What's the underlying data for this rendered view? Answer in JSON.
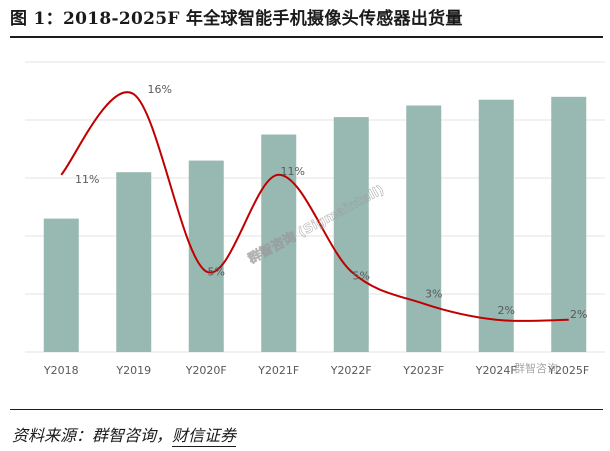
{
  "figure": {
    "title": "图 1：2018-2025F 年全球智能手机摄像头传感器出货量",
    "source_prefix": "资料来源：群智咨询，",
    "source_highlight": "财信证券",
    "watermark_center": "群智咨询 (Sigmaintell)",
    "watermark_corner": "群智咨询"
  },
  "colors": {
    "bar": "#98b9b2",
    "line": "#c00000",
    "grid": "#e3e3e3",
    "text": "#595959"
  },
  "chart_data": {
    "type": "bar",
    "title": "",
    "xlabel": "",
    "ylabel": "",
    "categories": [
      "Y2018",
      "Y2019",
      "Y2020F",
      "Y2021F",
      "Y2022F",
      "Y2023F",
      "Y2024F",
      "Y2025F"
    ],
    "series": [
      {
        "type": "bar",
        "values": [
          46,
          62,
          66,
          75,
          81,
          85,
          87,
          88
        ]
      },
      {
        "type": "line",
        "values": [
          11,
          16,
          5,
          11,
          5,
          3,
          2,
          2
        ],
        "labels": [
          "11%",
          "16%",
          "5%",
          "11%",
          "5%",
          "3%",
          "2%",
          "2%"
        ],
        "smooth": true
      }
    ],
    "ylim": [
      0,
      100
    ],
    "line_ylim": [
      0,
      18
    ],
    "grid": true,
    "legend": "none"
  }
}
